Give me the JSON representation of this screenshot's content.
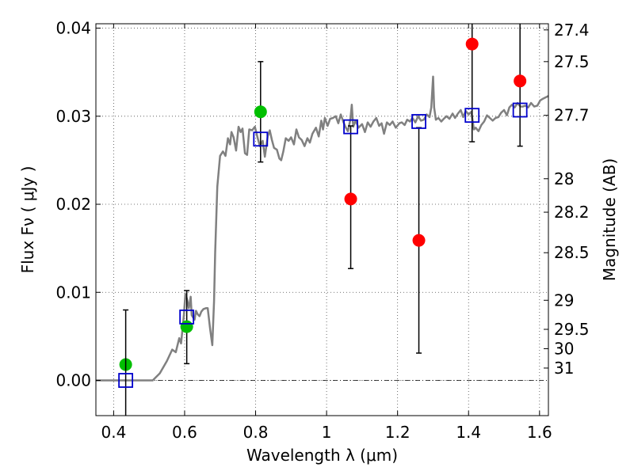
{
  "chart_data": {
    "type": "scatter",
    "xlabel": "Wavelength  λ (μm)",
    "ylabel": "Flux  Fν  ( μJy )",
    "ylabel_right": "Magnitude (AB)",
    "xlim": [
      0.35,
      1.625
    ],
    "ylim": [
      -0.004,
      0.0405
    ],
    "grid": true,
    "x_ticks": [
      0.4,
      0.6,
      0.8,
      1.0,
      1.2,
      1.4,
      1.6
    ],
    "x_tick_labels": [
      "0.4",
      "0.6",
      "0.8",
      "1",
      "1.2",
      "1.4",
      "1.6"
    ],
    "y_ticks": [
      0.0,
      0.01,
      0.02,
      0.03,
      0.04
    ],
    "y_tick_labels": [
      "0.00",
      "0.01",
      "0.02",
      "0.03",
      "0.04"
    ],
    "right_ticks": [
      {
        "label": "27.4",
        "flux": 0.0398
      },
      {
        "label": "27.5",
        "flux": 0.0362
      },
      {
        "label": "27.7",
        "flux": 0.0301
      },
      {
        "label": "28",
        "flux": 0.0229
      },
      {
        "label": "28.2",
        "flux": 0.0191
      },
      {
        "label": "28.5",
        "flux": 0.0145
      },
      {
        "label": "29",
        "flux": 0.0091
      },
      {
        "label": "29.5",
        "flux": 0.0058
      },
      {
        "label": "30",
        "flux": 0.0036
      },
      {
        "label": "31",
        "flux": 0.0014
      }
    ],
    "series": [
      {
        "kind": "line",
        "color": "#808080",
        "points": [
          [
            0.35,
            0.0
          ],
          [
            0.49,
            0.0
          ],
          [
            0.51,
            0.0
          ],
          [
            0.53,
            0.0008
          ],
          [
            0.55,
            0.0022
          ],
          [
            0.565,
            0.0035
          ],
          [
            0.575,
            0.0032
          ],
          [
            0.585,
            0.0048
          ],
          [
            0.59,
            0.0042
          ],
          [
            0.598,
            0.0075
          ],
          [
            0.602,
            0.0098
          ],
          [
            0.607,
            0.0092
          ],
          [
            0.612,
            0.0082
          ],
          [
            0.617,
            0.0095
          ],
          [
            0.62,
            0.0074
          ],
          [
            0.628,
            0.0069
          ],
          [
            0.632,
            0.0079
          ],
          [
            0.637,
            0.0075
          ],
          [
            0.642,
            0.0073
          ],
          [
            0.647,
            0.0078
          ],
          [
            0.653,
            0.0081
          ],
          [
            0.66,
            0.0082
          ],
          [
            0.665,
            0.0082
          ],
          [
            0.672,
            0.0058
          ],
          [
            0.678,
            0.004
          ],
          [
            0.683,
            0.009
          ],
          [
            0.686,
            0.0145
          ],
          [
            0.692,
            0.022
          ],
          [
            0.7,
            0.0255
          ],
          [
            0.708,
            0.026
          ],
          [
            0.715,
            0.0255
          ],
          [
            0.722,
            0.0275
          ],
          [
            0.728,
            0.0268
          ],
          [
            0.732,
            0.0282
          ],
          [
            0.738,
            0.0276
          ],
          [
            0.745,
            0.0261
          ],
          [
            0.752,
            0.0288
          ],
          [
            0.758,
            0.0282
          ],
          [
            0.763,
            0.0286
          ],
          [
            0.77,
            0.0258
          ],
          [
            0.776,
            0.0256
          ],
          [
            0.782,
            0.0285
          ],
          [
            0.79,
            0.0284
          ],
          [
            0.798,
            0.0288
          ],
          [
            0.806,
            0.0275
          ],
          [
            0.812,
            0.0266
          ],
          [
            0.82,
            0.0272
          ],
          [
            0.826,
            0.0254
          ],
          [
            0.834,
            0.0277
          ],
          [
            0.84,
            0.0284
          ],
          [
            0.846,
            0.0273
          ],
          [
            0.852,
            0.0264
          ],
          [
            0.86,
            0.0262
          ],
          [
            0.867,
            0.0252
          ],
          [
            0.872,
            0.025
          ],
          [
            0.878,
            0.026
          ],
          [
            0.885,
            0.0275
          ],
          [
            0.893,
            0.0272
          ],
          [
            0.9,
            0.0276
          ],
          [
            0.908,
            0.0268
          ],
          [
            0.915,
            0.0285
          ],
          [
            0.922,
            0.0276
          ],
          [
            0.93,
            0.0273
          ],
          [
            0.938,
            0.0266
          ],
          [
            0.946,
            0.0275
          ],
          [
            0.953,
            0.027
          ],
          [
            0.96,
            0.028
          ],
          [
            0.97,
            0.0287
          ],
          [
            0.978,
            0.0277
          ],
          [
            0.985,
            0.0295
          ],
          [
            0.99,
            0.0285
          ],
          [
            0.995,
            0.0298
          ],
          [
            1.003,
            0.0289
          ],
          [
            1.01,
            0.0297
          ],
          [
            1.018,
            0.0298
          ],
          [
            1.026,
            0.03
          ],
          [
            1.033,
            0.0292
          ],
          [
            1.04,
            0.0302
          ],
          [
            1.047,
            0.0294
          ],
          [
            1.053,
            0.0288
          ],
          [
            1.06,
            0.0283
          ],
          [
            1.067,
            0.0296
          ],
          [
            1.071,
            0.0313
          ],
          [
            1.075,
            0.0288
          ],
          [
            1.082,
            0.0295
          ],
          [
            1.09,
            0.0287
          ],
          [
            1.1,
            0.0291
          ],
          [
            1.108,
            0.0282
          ],
          [
            1.116,
            0.0293
          ],
          [
            1.124,
            0.0288
          ],
          [
            1.132,
            0.0294
          ],
          [
            1.14,
            0.0298
          ],
          [
            1.148,
            0.0289
          ],
          [
            1.155,
            0.0292
          ],
          [
            1.162,
            0.028
          ],
          [
            1.17,
            0.0293
          ],
          [
            1.178,
            0.029
          ],
          [
            1.186,
            0.0294
          ],
          [
            1.195,
            0.0287
          ],
          [
            1.205,
            0.0292
          ],
          [
            1.212,
            0.0293
          ],
          [
            1.22,
            0.029
          ],
          [
            1.227,
            0.0296
          ],
          [
            1.235,
            0.0294
          ],
          [
            1.242,
            0.0298
          ],
          [
            1.25,
            0.0293
          ],
          [
            1.258,
            0.03
          ],
          [
            1.266,
            0.0295
          ],
          [
            1.274,
            0.0296
          ],
          [
            1.282,
            0.0302
          ],
          [
            1.29,
            0.0299
          ],
          [
            1.295,
            0.031
          ],
          [
            1.3,
            0.0345
          ],
          [
            1.303,
            0.031
          ],
          [
            1.308,
            0.0296
          ],
          [
            1.315,
            0.0298
          ],
          [
            1.323,
            0.0294
          ],
          [
            1.33,
            0.0297
          ],
          [
            1.338,
            0.03
          ],
          [
            1.346,
            0.0297
          ],
          [
            1.355,
            0.0303
          ],
          [
            1.362,
            0.0298
          ],
          [
            1.37,
            0.0303
          ],
          [
            1.378,
            0.0307
          ],
          [
            1.385,
            0.0299
          ],
          [
            1.392,
            0.0306
          ],
          [
            1.4,
            0.0302
          ],
          [
            1.408,
            0.0305
          ],
          [
            1.415,
            0.0285
          ],
          [
            1.42,
            0.0287
          ],
          [
            1.428,
            0.0283
          ],
          [
            1.436,
            0.029
          ],
          [
            1.444,
            0.0294
          ],
          [
            1.452,
            0.0301
          ],
          [
            1.46,
            0.0298
          ],
          [
            1.468,
            0.0295
          ],
          [
            1.476,
            0.0298
          ],
          [
            1.484,
            0.0299
          ],
          [
            1.492,
            0.0304
          ],
          [
            1.5,
            0.0307
          ],
          [
            1.508,
            0.0301
          ],
          [
            1.515,
            0.031
          ],
          [
            1.522,
            0.0313
          ],
          [
            1.53,
            0.031
          ],
          [
            1.538,
            0.0315
          ],
          [
            1.546,
            0.0311
          ],
          [
            1.553,
            0.0311
          ],
          [
            1.56,
            0.0312
          ],
          [
            1.568,
            0.031
          ],
          [
            1.576,
            0.0315
          ],
          [
            1.585,
            0.0311
          ],
          [
            1.594,
            0.0312
          ],
          [
            1.602,
            0.0318
          ],
          [
            1.61,
            0.032
          ],
          [
            1.625,
            0.0323
          ]
        ]
      },
      {
        "kind": "points",
        "marker": "circle",
        "color": "#00bf00",
        "points": [
          [
            0.434,
            0.0018
          ],
          [
            0.606,
            0.0061
          ],
          [
            0.814,
            0.0305
          ]
        ],
        "errors": [
          null,
          [
            0.0019,
            0.0102
          ],
          [
            0.0248,
            0.0362
          ]
        ]
      },
      {
        "kind": "points",
        "marker": "circle",
        "color": "#ff0000",
        "points": [
          [
            1.068,
            0.0206
          ],
          [
            1.26,
            0.0159
          ],
          [
            1.41,
            0.0382
          ],
          [
            1.545,
            0.034
          ]
        ],
        "errors": [
          [
            0.0127,
            0.0289
          ],
          [
            0.0031,
            0.0287
          ],
          [
            0.0271,
            0.0412
          ],
          [
            0.0266,
            0.0412
          ]
        ]
      },
      {
        "kind": "points",
        "marker": "open-square",
        "color": "#0000cc",
        "points": [
          [
            0.434,
            0.0
          ],
          [
            0.606,
            0.0072
          ],
          [
            0.814,
            0.0274
          ],
          [
            1.068,
            0.0288
          ],
          [
            1.26,
            0.0294
          ],
          [
            1.41,
            0.0301
          ],
          [
            1.545,
            0.0307
          ]
        ],
        "errors": [
          [
            -0.0045,
            0.008
          ],
          null,
          null,
          null,
          null,
          null,
          null
        ]
      }
    ]
  }
}
